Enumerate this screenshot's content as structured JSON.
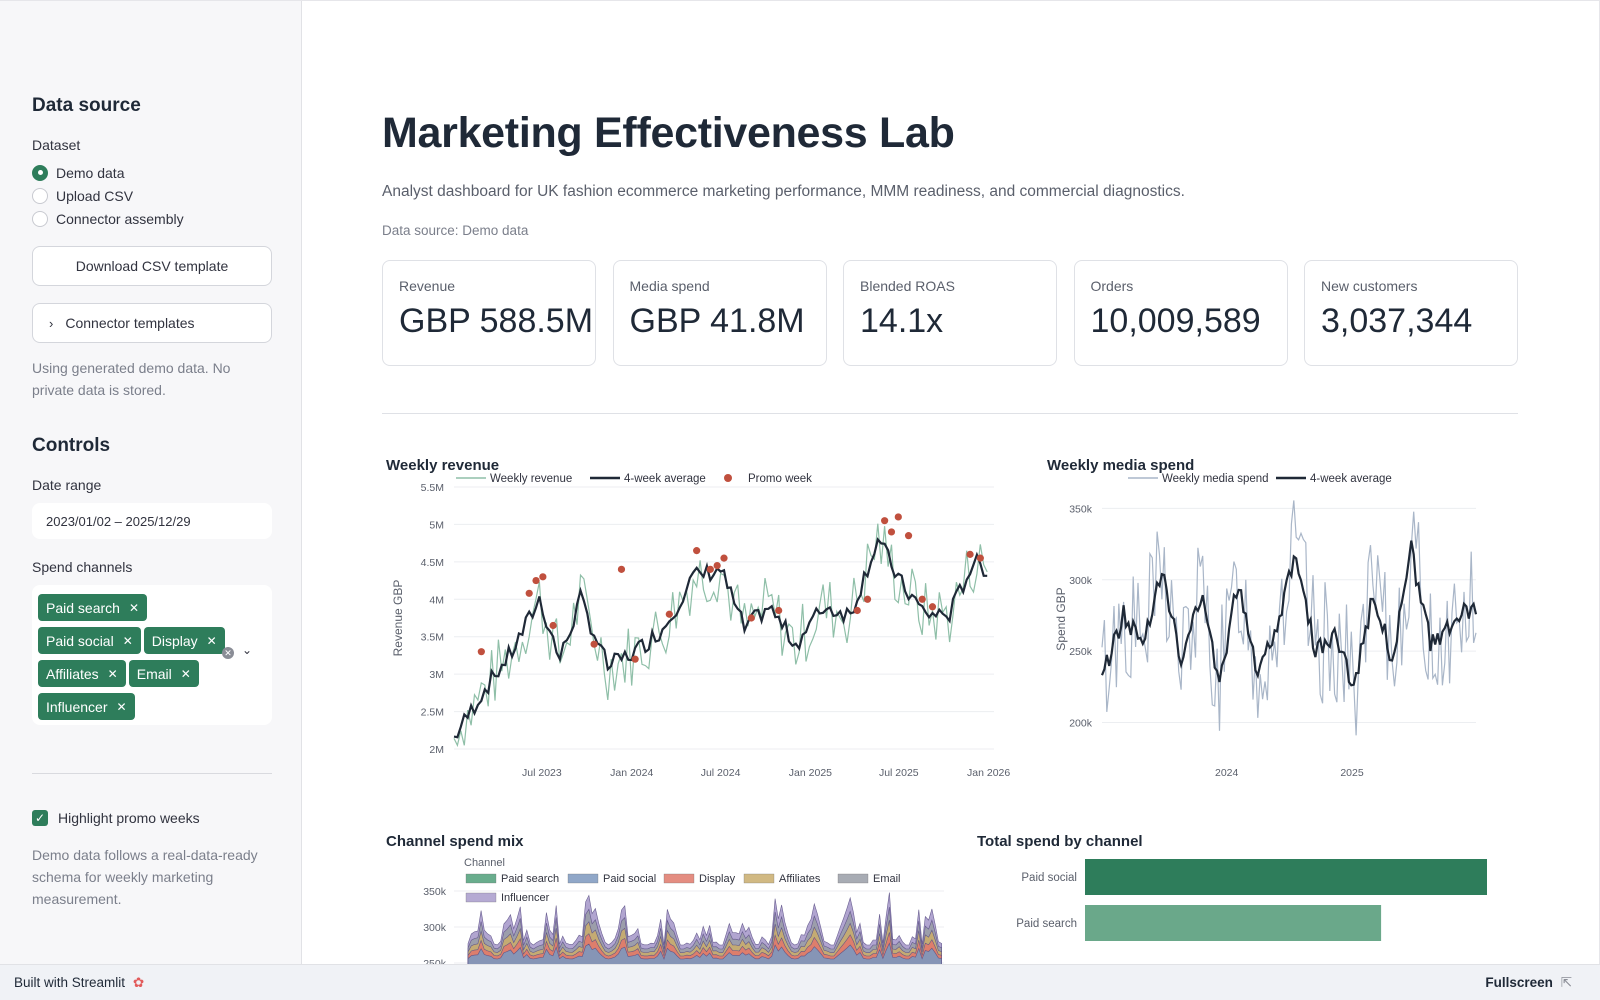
{
  "sidebar": {
    "data_source_heading": "Data source",
    "dataset_label": "Dataset",
    "dataset_options": [
      "Demo data",
      "Upload CSV",
      "Connector assembly"
    ],
    "dataset_selected": "Demo data",
    "download_button": "Download CSV template",
    "connector_expander": "Connector templates",
    "demo_note": "Using generated demo data. No private data is stored.",
    "controls_heading": "Controls",
    "date_range_label": "Date range",
    "date_range_value": "2023/01/02 – 2025/12/29",
    "spend_channels_label": "Spend channels",
    "spend_channels": [
      "Paid search",
      "Paid social",
      "Display",
      "Affiliates",
      "Email",
      "Influencer"
    ],
    "highlight_label": "Highlight promo weeks",
    "highlight_checked": true,
    "schema_note": "Demo data follows a real-data-ready schema for weekly marketing measurement."
  },
  "header": {
    "title": "Marketing Effectiveness Lab",
    "subtitle": "Analyst dashboard for UK fashion ecommerce marketing performance, MMM readiness, and commercial diagnostics.",
    "data_source_caption": "Data source: Demo data"
  },
  "kpis": [
    {
      "label": "Revenue",
      "value": "GBP 588.5M"
    },
    {
      "label": "Media spend",
      "value": "GBP 41.8M"
    },
    {
      "label": "Blended ROAS",
      "value": "14.1x"
    },
    {
      "label": "Orders",
      "value": "10,009,589"
    },
    {
      "label": "New customers",
      "value": "3,037,344"
    }
  ],
  "colors": {
    "accent": "#2e7d5b",
    "weekly_revenue_line": "#8fbfa8",
    "average_line": "#1f2937",
    "promo_dot": "#c0503e",
    "weekly_spend_line": "#a9b6c8",
    "paid_search": "#4f9f7a",
    "paid_social": "#7d98bf",
    "display": "#e07a6c",
    "affiliates": "#c9ad6e",
    "email": "#9a9ea7",
    "influencer": "#a99ccc",
    "bar_paid_social": "#2e7d5b",
    "bar_paid_search": "#6aa88a"
  },
  "footer": {
    "built_with": "Built with Streamlit",
    "fullscreen": "Fullscreen"
  },
  "chart_data": [
    {
      "id": "weekly_revenue",
      "type": "line",
      "title": "Weekly revenue",
      "ylabel": "Revenue GBP",
      "xlabel": "",
      "ylim": [
        2000000,
        5500000
      ],
      "yticks": [
        "2M",
        "2.5M",
        "3M",
        "3.5M",
        "4M",
        "4.5M",
        "5M",
        "5.5M"
      ],
      "xticks": [
        "Jul 2023",
        "Jan 2024",
        "Jul 2024",
        "Jan 2025",
        "Jul 2025",
        "Jan 2026"
      ],
      "legend": [
        "Weekly revenue",
        "4-week average",
        "Promo week"
      ],
      "legend_position": "top",
      "series": [
        {
          "name": "4-week average",
          "x": [
            "2023-01-02",
            "2023-03-06",
            "2023-05-01",
            "2023-06-26",
            "2023-08-07",
            "2023-09-18",
            "2023-11-13",
            "2024-01-08",
            "2024-03-04",
            "2024-05-06",
            "2024-07-01",
            "2024-08-19",
            "2024-10-07",
            "2024-12-02",
            "2025-01-27",
            "2025-03-24",
            "2025-05-19",
            "2025-07-07",
            "2025-08-25",
            "2025-10-13",
            "2025-12-01",
            "2025-12-29"
          ],
          "values": [
            2150000,
            2800000,
            3300000,
            4000000,
            3200000,
            4000000,
            3100000,
            3300000,
            3600000,
            4300000,
            4400000,
            3600000,
            3900000,
            3400000,
            3900000,
            3800000,
            4800000,
            4200000,
            3800000,
            3800000,
            4500000,
            4400000
          ]
        },
        {
          "name": "Promo week",
          "x": [
            "2023-02-27",
            "2023-06-05",
            "2023-06-19",
            "2023-07-03",
            "2023-07-24",
            "2023-10-16",
            "2023-12-11",
            "2024-01-08",
            "2024-03-18",
            "2024-05-13",
            "2024-06-10",
            "2024-06-24",
            "2024-07-08",
            "2024-09-02",
            "2024-10-28",
            "2025-04-07",
            "2025-04-28",
            "2025-06-02",
            "2025-06-16",
            "2025-06-30",
            "2025-07-21",
            "2025-08-18",
            "2025-09-08",
            "2025-11-24",
            "2025-12-15"
          ],
          "values": [
            3300000,
            4080000,
            4250000,
            4300000,
            3650000,
            3400000,
            4400000,
            3200000,
            3800000,
            4650000,
            4400000,
            4450000,
            4550000,
            3750000,
            3850000,
            3850000,
            4000000,
            5050000,
            4900000,
            5100000,
            4850000,
            4000000,
            3900000,
            4600000,
            4550000
          ]
        }
      ]
    },
    {
      "id": "weekly_media_spend",
      "type": "line",
      "title": "Weekly media spend",
      "ylabel": "Spend GBP",
      "xlabel": "",
      "ylim": [
        180000,
        365000
      ],
      "yticks": [
        "200k",
        "250k",
        "300k",
        "350k"
      ],
      "xticks": [
        "2024",
        "2025"
      ],
      "legend": [
        "Weekly media spend",
        "4-week average"
      ],
      "legend_position": "top",
      "series": [
        {
          "name": "4-week average",
          "x": [
            "2023-01-02",
            "2023-03-06",
            "2023-05-01",
            "2023-06-26",
            "2023-08-21",
            "2023-10-16",
            "2023-12-11",
            "2024-02-05",
            "2024-04-01",
            "2024-05-27",
            "2024-07-22",
            "2024-09-16",
            "2024-11-11",
            "2025-01-06",
            "2025-03-03",
            "2025-04-28",
            "2025-06-23",
            "2025-08-18",
            "2025-10-13",
            "2025-12-08",
            "2025-12-29"
          ],
          "values": [
            232000,
            275000,
            255000,
            310000,
            240000,
            290000,
            230000,
            300000,
            235000,
            270000,
            320000,
            250000,
            260000,
            225000,
            290000,
            245000,
            320000,
            255000,
            265000,
            280000,
            278000
          ]
        }
      ]
    },
    {
      "id": "channel_spend_mix",
      "type": "area",
      "title": "Channel spend mix",
      "legend_title": "Channel",
      "legend": [
        "Paid search",
        "Paid social",
        "Display",
        "Affiliates",
        "Email",
        "Influencer"
      ],
      "legend_position": "top",
      "yticks": [
        "350k",
        "300k",
        "250k"
      ]
    },
    {
      "id": "total_spend_by_channel",
      "type": "bar",
      "title": "Total spend by channel",
      "categories": [
        "Paid social",
        "Paid search"
      ],
      "values": [
        14800000,
        10900000
      ]
    }
  ]
}
